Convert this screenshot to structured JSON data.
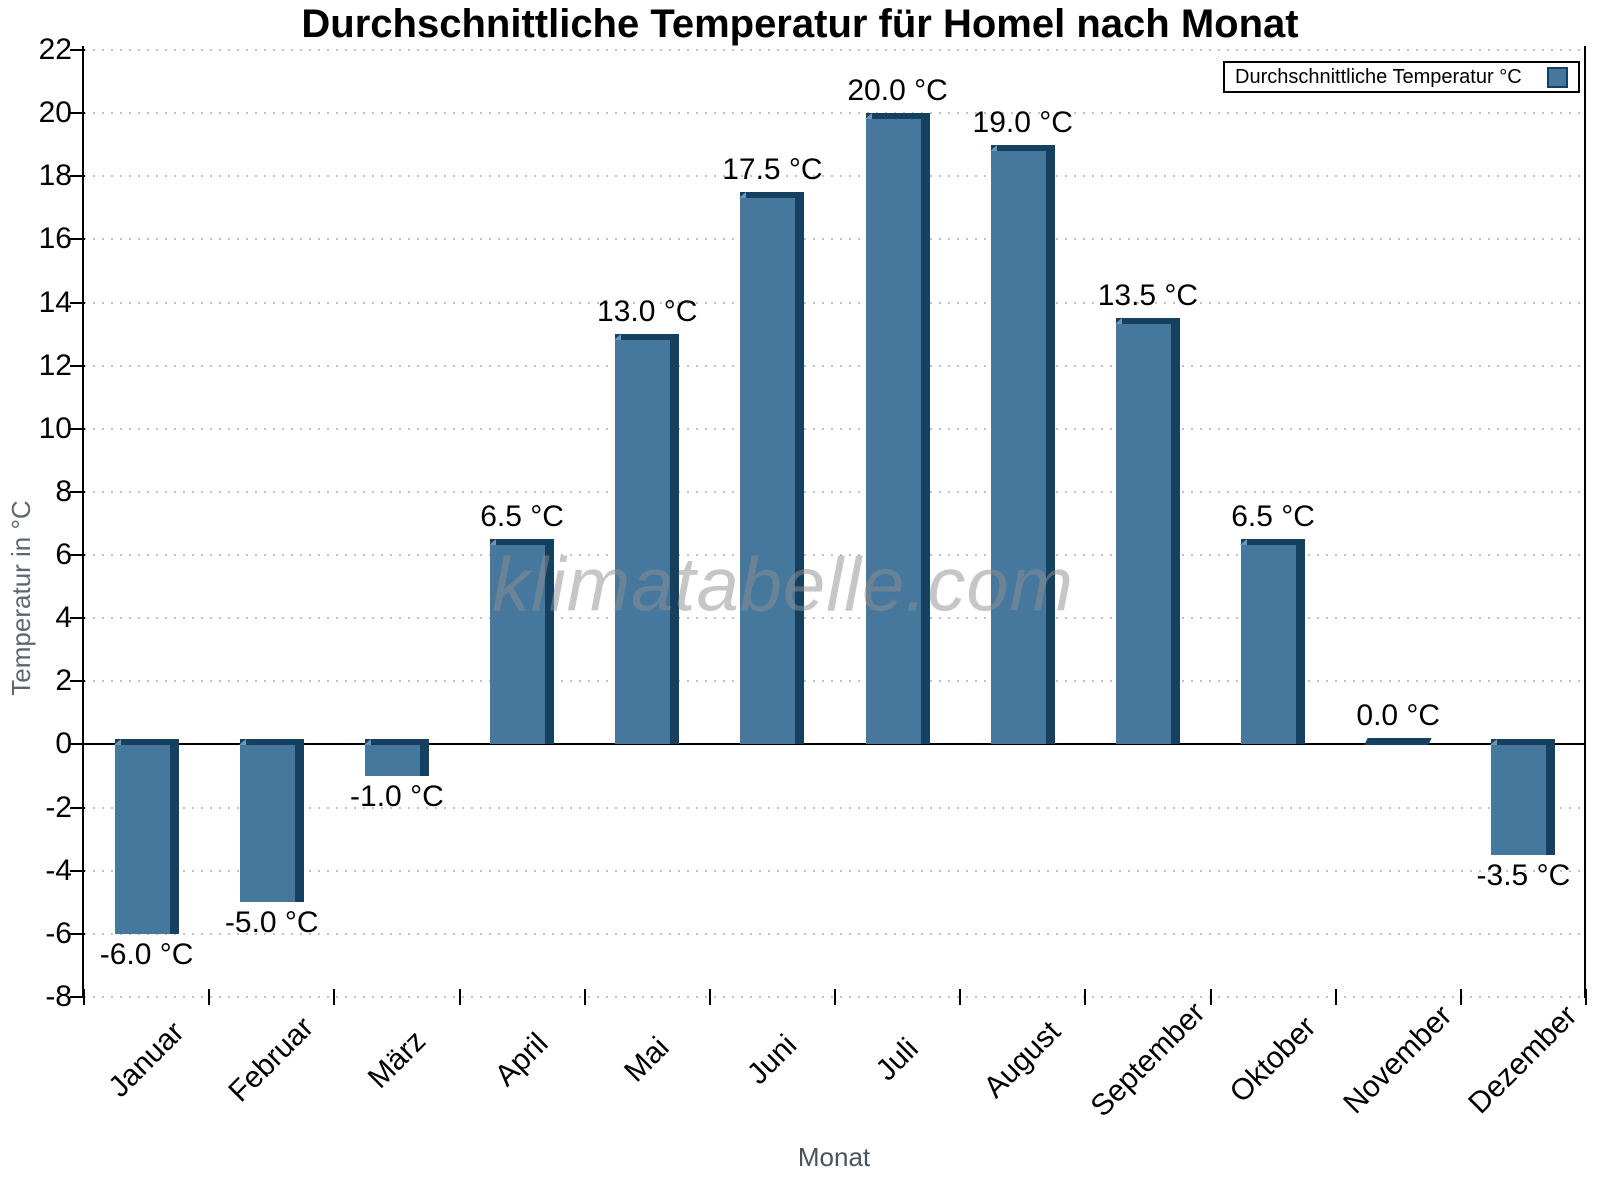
{
  "title": "Durchschnittliche Temperatur für Homel nach Monat",
  "legend": {
    "label": "Durchschnittliche Temperatur °C"
  },
  "watermark": "klimatabelle.com",
  "axes": {
    "x_title": "Monat",
    "y_title": "Temperatur in °C"
  },
  "chart_data": {
    "type": "bar",
    "title": "Durchschnittliche Temperatur für Homel nach Monat",
    "xlabel": "Monat",
    "ylabel": "Temperatur in °C",
    "categories": [
      "Januar",
      "Februar",
      "März",
      "April",
      "Mai",
      "Juni",
      "Juli",
      "August",
      "September",
      "Oktober",
      "November",
      "Dezember"
    ],
    "values": [
      -6.0,
      -5.0,
      -1.0,
      6.5,
      13.0,
      17.5,
      20.0,
      19.0,
      13.5,
      6.5,
      0.0,
      -3.5
    ],
    "value_labels": [
      "-6.0 °C",
      "-5.0 °C",
      "-1.0 °C",
      "6.5 °C",
      "13.0 °C",
      "17.5 °C",
      "20.0 °C",
      "19.0 °C",
      "13.5 °C",
      "6.5 °C",
      "0.0 °C",
      "-3.5 °C"
    ],
    "series": [
      {
        "name": "Durchschnittliche Temperatur °C",
        "values": [
          -6.0,
          -5.0,
          -1.0,
          6.5,
          13.0,
          17.5,
          20.0,
          19.0,
          13.5,
          6.5,
          0.0,
          -3.5
        ]
      }
    ],
    "ylim": [
      -8,
      22
    ],
    "ytick_step": 2,
    "grid": "horizontal-dotted",
    "legend_position": "top-right",
    "colors": {
      "bar_face": "#46789E",
      "bar_edge": "#16405F",
      "bar_bevel": "#6E96B4",
      "gridline": "#c2c2c2",
      "zero_line": "#000000",
      "axis_text": "#000000",
      "muted_text": "#5b6670",
      "watermark": "#8f8f8f"
    }
  }
}
